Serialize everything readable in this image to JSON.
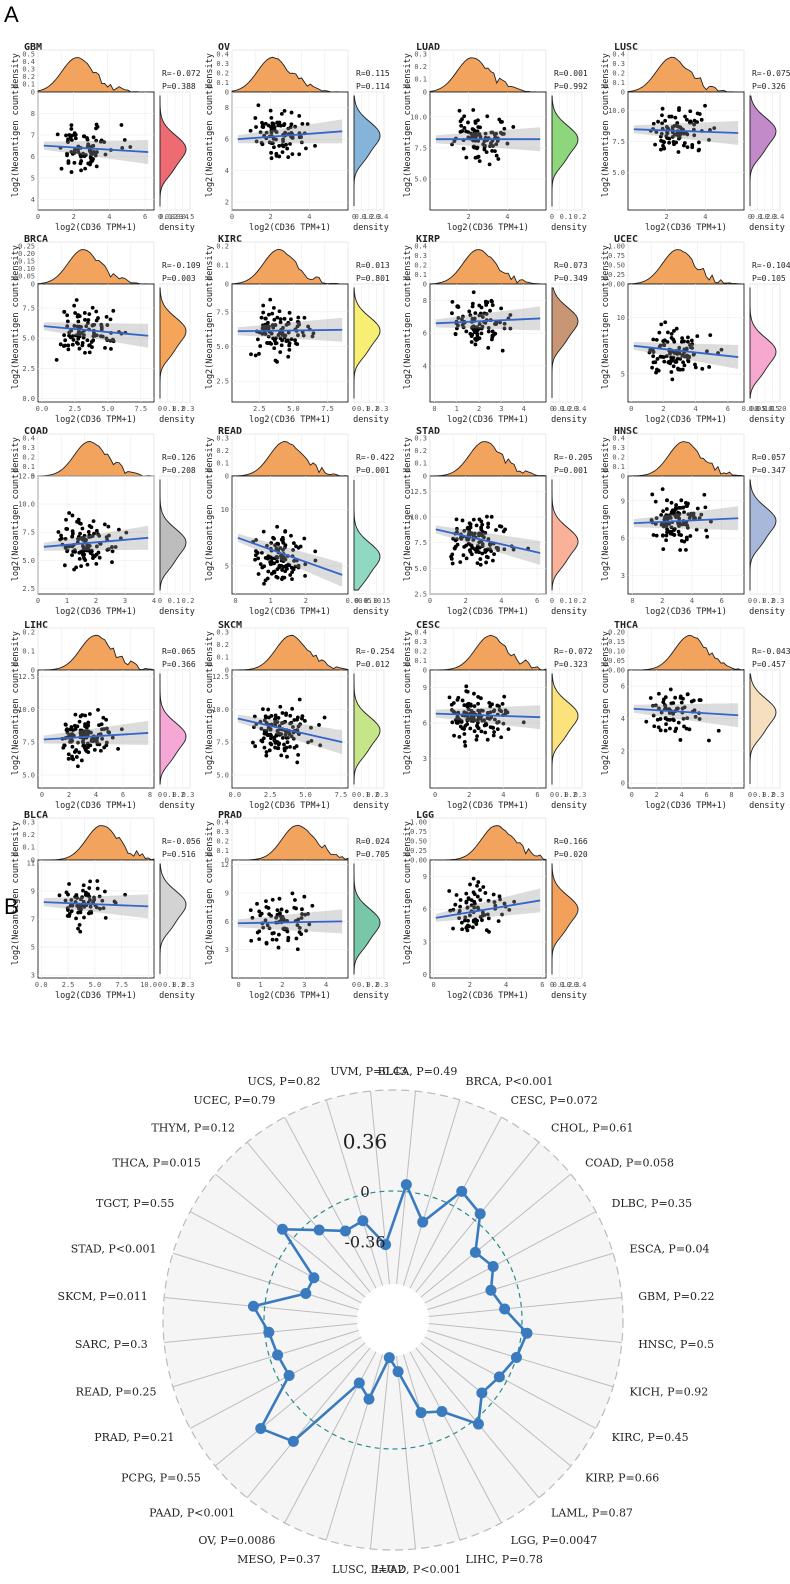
{
  "panel_labels": {
    "a": "A",
    "b": "B"
  },
  "chart_data": [
    {
      "type": "scatter",
      "description_label": "A",
      "xlabel": "log2(CD36 TPM+1)",
      "ylabel": "log2(Neoantigen count)",
      "density_label": "density",
      "marginal_top_label": "density",
      "facets": [
        {
          "name": "GBM",
          "r": "R=-0.072",
          "p": "P=0.388",
          "xlim": [
            0,
            6.5
          ],
          "ylim": [
            3.5,
            9
          ],
          "xticks": [
            "0",
            "2",
            "4",
            "6"
          ],
          "yticks": [
            "4",
            "5",
            "6",
            "7",
            "8"
          ],
          "fit": [
            6.5,
            6.2
          ],
          "color": "#ee6b73",
          "top_ticks": [
            "0",
            "0.1",
            "0.2",
            "0.3",
            "0.4",
            "0.5"
          ],
          "right_ticks": [
            "0",
            "0.1",
            "0.2",
            "0.3",
            "0.4",
            "0.5"
          ]
        },
        {
          "name": "OV",
          "r": "R=0.115",
          "p": "P=0.114",
          "xlim": [
            0,
            6
          ],
          "ylim": [
            1.5,
            9
          ],
          "xticks": [
            "0",
            "2",
            "4"
          ],
          "yticks": [
            "2",
            "4",
            "6",
            "8"
          ],
          "fit": [
            6.0,
            6.5
          ],
          "color": "#84b4da",
          "top_ticks": [
            "0",
            "0.1",
            "0.2",
            "0.3",
            "0.4"
          ],
          "right_ticks": [
            "0",
            "0.1",
            "0.2",
            "0.3",
            "0.4"
          ]
        },
        {
          "name": "LUAD",
          "r": "R=0.001",
          "p": "P=0.992",
          "xlim": [
            0,
            6
          ],
          "ylim": [
            2.5,
            12
          ],
          "xticks": [
            "2",
            "4"
          ],
          "yticks": [
            "5.0",
            "7.5",
            "10.0"
          ],
          "fit": [
            8.2,
            8.2
          ],
          "color": "#8ed67c",
          "top_ticks": [
            "0",
            "0.1",
            "0.2",
            "0.3"
          ],
          "right_ticks": [
            "0",
            "0.1",
            "0.2"
          ]
        },
        {
          "name": "LUSC",
          "r": "R=-0.075",
          "p": "P=0.326",
          "xlim": [
            0,
            6
          ],
          "ylim": [
            2,
            11.5
          ],
          "xticks": [
            "2",
            "4"
          ],
          "yticks": [
            "5.0",
            "7.5",
            "10.0"
          ],
          "fit": [
            8.5,
            8.2
          ],
          "color": "#c28ac8",
          "top_ticks": [
            "0",
            "0.1",
            "0.2",
            "0.3",
            "0.4"
          ],
          "right_ticks": [
            "0",
            "0.1",
            "0.2",
            "0.3",
            "0.4"
          ]
        },
        {
          "name": "BRCA",
          "r": "R=-0.109",
          "p": "P=0.003",
          "xlim": [
            -0.3,
            8.5
          ],
          "ylim": [
            -0.3,
            9.5
          ],
          "xticks": [
            "0.0",
            "2.5",
            "5.0",
            "7.5"
          ],
          "yticks": [
            "0.0",
            "2.5",
            "5.0",
            "7.5"
          ],
          "fit": [
            6.0,
            5.2
          ],
          "color": "#f5a55a",
          "top_ticks": [
            "0",
            "0.05",
            "0.10",
            "0.15",
            "0.20",
            "0.25"
          ],
          "right_ticks": [
            "0",
            "0.1",
            "0.2",
            "0.3"
          ]
        },
        {
          "name": "KIRC",
          "r": "R=0.013",
          "p": "P=0.801",
          "xlim": [
            0.5,
            9
          ],
          "ylim": [
            1,
            9.5
          ],
          "xticks": [
            "2.5",
            "5.0",
            "7.5"
          ],
          "yticks": [
            "2.5",
            "5.0",
            "7.5"
          ],
          "fit": [
            6.1,
            6.2
          ],
          "color": "#f7ef73",
          "top_ticks": [
            "0",
            "0.1",
            "0.2"
          ],
          "right_ticks": [
            "0",
            "0.1",
            "0.2",
            "0.3"
          ]
        },
        {
          "name": "KIRP",
          "r": "R=0.073",
          "p": "P=0.349",
          "xlim": [
            -0.2,
            5
          ],
          "ylim": [
            1.8,
            9
          ],
          "xticks": [
            "0",
            "1",
            "2",
            "3",
            "4"
          ],
          "yticks": [
            "4",
            "6",
            "8"
          ],
          "fit": [
            6.6,
            6.9
          ],
          "color": "#c99675",
          "top_ticks": [
            "0",
            "0.1",
            "0.2",
            "0.3",
            "0.4"
          ],
          "right_ticks": [
            "0",
            "0.1",
            "0.2",
            "0.3",
            "0.4"
          ]
        },
        {
          "name": "UCEC",
          "r": "R=-0.104",
          "p": "P=0.105",
          "xlim": [
            -0.2,
            7
          ],
          "ylim": [
            2.5,
            13
          ],
          "xticks": [
            "0",
            "2",
            "4",
            "6"
          ],
          "yticks": [
            "5",
            "10"
          ],
          "fit": [
            7.5,
            6.5
          ],
          "color": "#f7a8cf",
          "top_ticks": [
            "0.00",
            "0.25",
            "0.50",
            "0.75",
            "1.00"
          ],
          "right_ticks": [
            "0.00",
            "0.05",
            "0.10",
            "0.15",
            "0.20"
          ]
        },
        {
          "name": "COAD",
          "r": "R=0.126",
          "p": "P=0.208",
          "xlim": [
            0,
            4
          ],
          "ylim": [
            2,
            12.5
          ],
          "xticks": [
            "0",
            "1",
            "2",
            "3",
            "4"
          ],
          "yticks": [
            "2.5",
            "5.0",
            "7.5",
            "10.0",
            "12.5"
          ],
          "fit": [
            6.2,
            7.0
          ],
          "color": "#bdbdbd",
          "top_ticks": [
            "0",
            "0.1",
            "0.2",
            "0.3",
            "0.4"
          ],
          "right_ticks": [
            "0",
            "0.1",
            "0.2"
          ]
        },
        {
          "name": "READ",
          "r": "R=-0.422",
          "p": "P=0.001",
          "xlim": [
            -0.1,
            3.2
          ],
          "ylim": [
            2.5,
            13
          ],
          "xticks": [
            "0",
            "1",
            "2"
          ],
          "yticks": [
            "5",
            "10"
          ],
          "fit": [
            7.5,
            4.2
          ],
          "color": "#8fd9c3",
          "top_ticks": [
            "0",
            "0.1",
            "0.2",
            "0.3"
          ],
          "right_ticks": [
            "0.00",
            "0.05",
            "0.10",
            "0.15"
          ]
        },
        {
          "name": "STAD",
          "r": "R=-0.205",
          "p": "P=0.001",
          "xlim": [
            0,
            6.5
          ],
          "ylim": [
            2.5,
            14
          ],
          "xticks": [
            "0",
            "2",
            "4",
            "6"
          ],
          "yticks": [
            "2.5",
            "5.0",
            "7.5",
            "10.0",
            "12.5"
          ],
          "fit": [
            8.8,
            6.5
          ],
          "color": "#fab199",
          "top_ticks": [
            "0",
            "0.1",
            "0.2",
            "0.3"
          ],
          "right_ticks": [
            "0",
            "0.1",
            "0.2"
          ]
        },
        {
          "name": "HNSC",
          "r": "R=0.057",
          "p": "P=0.347",
          "xlim": [
            -0.3,
            7.5
          ],
          "ylim": [
            1.5,
            11
          ],
          "xticks": [
            "0",
            "2",
            "4",
            "6"
          ],
          "yticks": [
            "3",
            "6",
            "9"
          ],
          "fit": [
            7.2,
            7.6
          ],
          "color": "#a7b8db",
          "top_ticks": [
            "0",
            "0.1",
            "0.2",
            "0.3",
            "0.4"
          ],
          "right_ticks": [
            "0",
            "0.1",
            "0.2",
            "0.3"
          ]
        },
        {
          "name": "LIHC",
          "r": "R=0.065",
          "p": "P=0.366",
          "xlim": [
            -0.3,
            8.3
          ],
          "ylim": [
            4,
            13
          ],
          "xticks": [
            "0",
            "2",
            "4",
            "6",
            "8"
          ],
          "yticks": [
            "5.0",
            "7.5",
            "10.0",
            "12.5"
          ],
          "fit": [
            7.7,
            8.2
          ],
          "color": "#f5a8d6",
          "top_ticks": [
            "0",
            "0.1",
            "0.2"
          ],
          "right_ticks": [
            "0",
            "0.1",
            "0.2",
            "0.3"
          ]
        },
        {
          "name": "SKCM",
          "r": "R=-0.254",
          "p": "P=0.012",
          "xlim": [
            -0.2,
            8
          ],
          "ylim": [
            4,
            13
          ],
          "xticks": [
            "0.0",
            "2.5",
            "5.0",
            "7.5"
          ],
          "yticks": [
            "5.0",
            "7.5",
            "10.0",
            "12.5"
          ],
          "fit": [
            9.3,
            7.5
          ],
          "color": "#c6e588",
          "top_ticks": [
            "0",
            "0.1",
            "0.2",
            "0.3"
          ],
          "right_ticks": [
            "0",
            "0.1",
            "0.2",
            "0.3"
          ]
        },
        {
          "name": "CESC",
          "r": "R=-0.072",
          "p": "P=0.323",
          "xlim": [
            -0.3,
            6.5
          ],
          "ylim": [
            0.5,
            10.5
          ],
          "xticks": [
            "0",
            "2",
            "4",
            "6"
          ],
          "yticks": [
            "3",
            "6",
            "9"
          ],
          "fit": [
            6.8,
            6.5
          ],
          "color": "#fbe27a",
          "top_ticks": [
            "0",
            "0.1",
            "0.2",
            "0.3",
            "0.4"
          ],
          "right_ticks": [
            "0",
            "0.1",
            "0.2",
            "0.3"
          ]
        },
        {
          "name": "THCA",
          "r": "R=-0.043",
          "p": "P=0.457",
          "xlim": [
            -0.3,
            9
          ],
          "ylim": [
            -0.3,
            7
          ],
          "xticks": [
            "0",
            "2",
            "4",
            "6",
            "8"
          ],
          "yticks": [
            "0",
            "2",
            "4",
            "6"
          ],
          "fit": [
            4.6,
            4.2
          ],
          "color": "#f5dfbf",
          "top_ticks": [
            "0.00",
            "0.05",
            "0.10",
            "0.15",
            "0.20"
          ],
          "right_ticks": [
            "0",
            "0.1",
            "0.2",
            "0.3"
          ]
        },
        {
          "name": "BLCA",
          "r": "R=-0.056",
          "p": "P=0.516",
          "xlim": [
            -0.3,
            10.5
          ],
          "ylim": [
            2.8,
            11.2
          ],
          "xticks": [
            "0.0",
            "2.5",
            "5.0",
            "7.5",
            "10.0"
          ],
          "yticks": [
            "3",
            "5",
            "7",
            "9",
            "11"
          ],
          "fit": [
            8.2,
            7.9
          ],
          "color": "#d3d3d3",
          "top_ticks": [
            "0",
            "0.1",
            "0.2",
            "0.3"
          ],
          "right_ticks": [
            "0",
            "0.1",
            "0.2",
            "0.3"
          ]
        },
        {
          "name": "PRAD",
          "r": "R=0.024",
          "p": "P=0.705",
          "xlim": [
            -0.3,
            5
          ],
          "ylim": [
            0,
            12.5
          ],
          "xticks": [
            "0",
            "1",
            "2",
            "3",
            "4"
          ],
          "yticks": [
            "3",
            "6",
            "9",
            "12"
          ],
          "fit": [
            5.8,
            6.0
          ],
          "color": "#78c7a8",
          "top_ticks": [
            "0",
            "0.1",
            "0.2",
            "0.3",
            "0.4"
          ],
          "right_ticks": [
            "0",
            "0.1",
            "0.2",
            "0.3"
          ]
        },
        {
          "name": "LGG",
          "r": "R=0.166",
          "p": "P=0.020",
          "xlim": [
            -0.2,
            6.2
          ],
          "ylim": [
            -0.3,
            10.5
          ],
          "xticks": [
            "0",
            "2",
            "4",
            "6"
          ],
          "yticks": [
            "0",
            "3",
            "6",
            "9"
          ],
          "fit": [
            5.2,
            6.8
          ],
          "color": "#f3a05a",
          "top_ticks": [
            "0.00",
            "0.25",
            "0.50",
            "0.75",
            "1.00"
          ],
          "right_ticks": [
            "0",
            "0.1",
            "0.2",
            "0.3",
            "0.4"
          ]
        }
      ]
    },
    {
      "type": "line",
      "subtype": "radar",
      "description_label": "B",
      "rlim": [
        -0.72,
        0.72
      ],
      "radial_ticks": [
        "0.36",
        "0",
        "-0.36"
      ],
      "categories": [
        "BLCA, P=0.49",
        "BRCA, P<0.001",
        "CESC, P=0.072",
        "CHOL, P=0.61",
        "COAD, P=0.058",
        "DLBC, P=0.35",
        "ESCA, P=0.04",
        "GBM, P=0.22",
        "HNSC, P=0.5",
        "KICH, P=0.92",
        "KIRC, P=0.45",
        "KIRP, P=0.66",
        "LAML, P=0.87",
        "LGG, P=0.0047",
        "LIHC, P=0.78",
        "LUAD, P<0.001",
        "LUSC, P=0.2",
        "MESO, P=0.37",
        "OV, P=0.0086",
        "PAAD, P<0.001",
        "PCPG, P=0.55",
        "PRAD, P=0.21",
        "READ, P=0.25",
        "SARC, P=0.3",
        "SKCM, P=0.011",
        "STAD, P<0.001",
        "TGCT, P=0.55",
        "THCA, P=0.015",
        "THYM, P=0.12",
        "UCEC, P=0.79",
        "UCS, P=0.82",
        "UVM, P=0.43"
      ],
      "values": [
        0.05,
        -0.19,
        0.12,
        0.06,
        -0.16,
        -0.11,
        -0.19,
        -0.12,
        0.04,
        0.0,
        -0.06,
        -0.1,
        0.04,
        -0.18,
        -0.23,
        -0.55,
        -0.65,
        -0.33,
        -0.41,
        0.2,
        0.3,
        -0.08,
        -0.06,
        -0.03,
        0.08,
        -0.27,
        -0.28,
        0.1,
        -0.09,
        -0.2,
        -0.18,
        -0.38
      ],
      "series_color": "#3a7bbf"
    }
  ]
}
